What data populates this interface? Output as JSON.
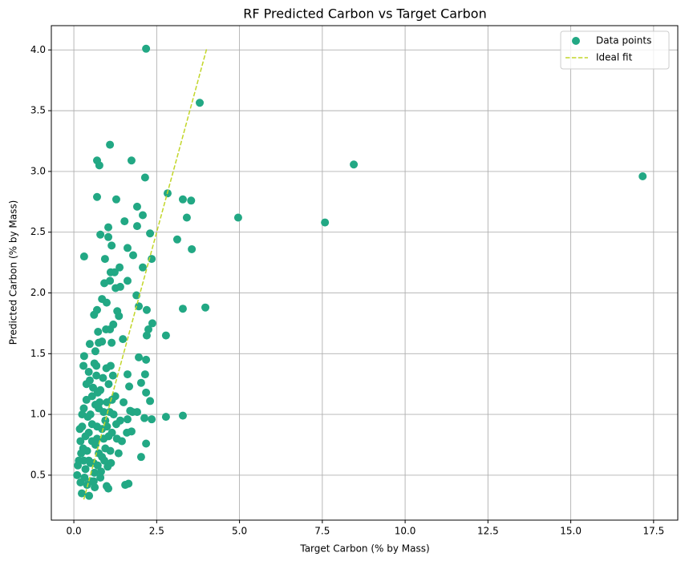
{
  "chart_data": {
    "type": "scatter",
    "title": "RF Predicted Carbon vs Target Carbon",
    "x_label": "Target Carbon (% by Mass)",
    "y_label": "Predicted Carbon (% by Mass)",
    "xlim": [
      -0.68,
      18.23
    ],
    "ylim": [
      0.13,
      4.2
    ],
    "xticks": [
      {
        "value": 0,
        "label": "0.0"
      },
      2.5,
      {
        "value": 5,
        "label": "5.0"
      },
      7.5,
      {
        "value": 10,
        "label": "10.0"
      },
      12.5,
      {
        "value": 15,
        "label": "15.0"
      },
      17.5
    ],
    "yticks": [
      0.5,
      {
        "value": 1,
        "label": "1.0"
      },
      1.5,
      {
        "value": 2,
        "label": "2.0"
      },
      2.5,
      {
        "value": 3,
        "label": "3.0"
      },
      3.5,
      {
        "value": 4,
        "label": "4.0"
      }
    ],
    "grid": true,
    "legend": "upper right",
    "series": [
      {
        "name": "Data points",
        "type": "scatter",
        "color": "#22a884",
        "x": [
          2.18,
          3.8,
          8.45,
          17.17,
          7.58,
          4.96,
          3.97,
          3.29,
          3.29,
          2.78,
          2.78,
          2.83,
          3.29,
          3.54,
          3.41,
          3.12,
          3.56,
          1.09,
          1.74,
          0.7,
          0.77,
          2.15,
          0.7,
          1.28,
          1.91,
          2.08,
          1.53,
          1.91,
          1.04,
          2.3,
          0.8,
          1.04,
          1.14,
          1.62,
          0.31,
          0.94,
          1.79,
          2.35,
          1.38,
          2.08,
          1.11,
          1.23,
          1.62,
          1.09,
          1.4,
          1.26,
          0.92,
          1.89,
          0.85,
          0.99,
          1.96,
          2.2,
          1.31,
          0.7,
          0.61,
          1.36,
          2.37,
          2.25,
          1.19,
          1.09,
          0.97,
          0.73,
          2.2,
          1.48,
          0.48,
          0.75,
          0.85,
          1.14,
          0.65,
          0.31,
          1.96,
          2.18,
          0.29,
          0.68,
          1.11,
          2.15,
          1.62,
          2.03,
          2.18,
          1.67,
          2.3,
          1.91,
          1.77,
          2.13,
          2.35,
          1.62,
          1.74,
          2.18,
          2.03,
          1.65,
          1.55,
          1.04,
          0.99,
          0.46,
          0.24,
          0.63,
          0.1,
          0.15,
          0.2,
          0.25,
          0.3,
          0.35,
          0.4,
          0.45,
          0.5,
          0.55,
          0.6,
          0.65,
          0.7,
          0.75,
          0.8,
          0.85,
          0.9,
          0.95,
          1.0,
          1.05,
          1.1,
          1.15,
          1.2,
          1.25,
          1.3,
          1.4,
          1.5,
          0.12,
          0.22,
          0.32,
          0.42,
          0.52,
          0.62,
          0.72,
          0.82,
          0.92,
          1.02,
          1.12,
          0.18,
          0.28,
          0.38,
          0.48,
          0.58,
          0.68,
          0.78,
          0.88,
          0.98,
          1.08,
          1.18,
          1.28,
          1.35,
          1.45,
          1.6,
          1.7,
          0.25,
          0.35,
          0.45,
          0.55,
          0.65,
          0.75,
          0.85,
          0.95,
          1.05,
          1.15,
          0.4,
          0.6,
          0.8,
          0.2,
          0.5,
          0.7,
          1.0,
          0.3,
          0.9,
          0.55,
          0.45,
          0.38,
          0.62,
          0.72
        ],
        "values": [
          4.01,
          3.565,
          3.057,
          2.96,
          2.58,
          2.62,
          1.88,
          1.87,
          0.99,
          0.98,
          1.65,
          2.82,
          2.77,
          2.76,
          2.62,
          2.44,
          2.36,
          3.22,
          3.09,
          3.09,
          3.05,
          2.95,
          2.79,
          2.77,
          2.71,
          2.64,
          2.59,
          2.55,
          2.54,
          2.49,
          2.48,
          2.46,
          2.39,
          2.37,
          2.3,
          2.28,
          2.31,
          2.28,
          2.21,
          2.21,
          2.17,
          2.17,
          2.1,
          2.1,
          2.05,
          2.04,
          2.08,
          1.98,
          1.95,
          1.92,
          1.89,
          1.86,
          1.85,
          1.86,
          1.82,
          1.81,
          1.75,
          1.7,
          1.74,
          1.7,
          1.7,
          1.68,
          1.65,
          1.62,
          1.58,
          1.59,
          1.6,
          1.59,
          1.52,
          1.48,
          1.47,
          1.45,
          1.4,
          1.4,
          1.4,
          1.33,
          1.33,
          1.26,
          1.18,
          1.23,
          1.11,
          1.02,
          1.02,
          0.97,
          0.96,
          0.96,
          0.86,
          0.76,
          0.65,
          0.43,
          0.42,
          0.39,
          0.41,
          0.33,
          0.35,
          0.4,
          0.5,
          0.62,
          0.78,
          0.9,
          1.05,
          0.55,
          0.7,
          0.85,
          1.0,
          1.15,
          0.6,
          0.75,
          0.9,
          1.05,
          1.2,
          0.65,
          0.8,
          0.95,
          1.1,
          1.25,
          0.7,
          0.85,
          1.0,
          1.15,
          0.8,
          0.95,
          1.1,
          0.58,
          0.68,
          0.48,
          0.98,
          0.45,
          0.52,
          0.58,
          0.53,
          0.62,
          0.57,
          0.6,
          0.88,
          0.72,
          1.12,
          1.28,
          1.22,
          1.32,
          1.1,
          1.3,
          1.38,
          1.02,
          1.32,
          0.92,
          0.68,
          0.78,
          0.85,
          1.03,
          1.0,
          0.82,
          0.62,
          0.78,
          1.08,
          0.68,
          0.88,
          0.72,
          0.82,
          1.12,
          0.42,
          0.45,
          0.48,
          0.44,
          0.6,
          0.8,
          0.9,
          0.62,
          1.02,
          0.92,
          1.35,
          1.25,
          1.42,
          1.18
        ]
      },
      {
        "name": "Ideal fit",
        "type": "line",
        "dashed": true,
        "color": "#c2d629",
        "x": [
          0.3,
          4.01
        ],
        "values": [
          0.3,
          4.01
        ]
      }
    ]
  }
}
